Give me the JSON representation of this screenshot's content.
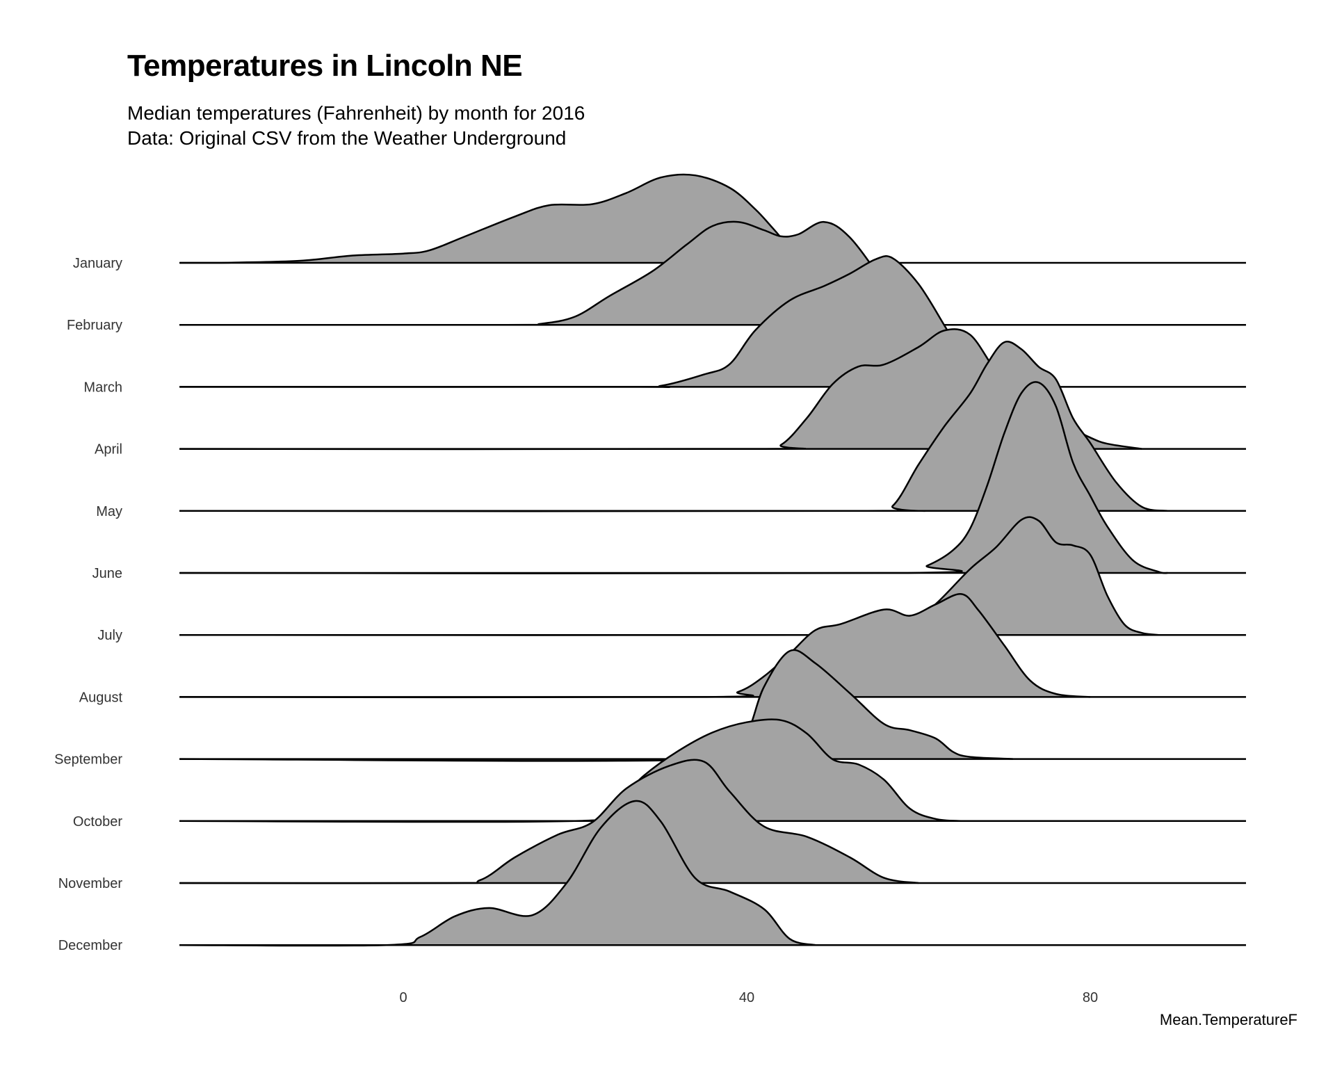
{
  "title": "Temperatures in Lincoln NE",
  "subtitle_line1": "Median temperatures (Fahrenheit) by month for 2016",
  "subtitle_line2": "Data: Original CSV from the Weather Underground",
  "chart_data": {
    "type": "ridgeline",
    "xlabel": "Mean.TemperatureF",
    "ylabel": "",
    "xlim": [
      -26,
      98
    ],
    "x_ticks": [
      0,
      40,
      80
    ],
    "fill_color": "#a3a3a3",
    "line_color": "#000000",
    "grid": false,
    "series": [
      {
        "name": "January",
        "points": [
          [
            -26,
            0
          ],
          [
            -20,
            0.002
          ],
          [
            -12,
            0.02
          ],
          [
            -6,
            0.07
          ],
          [
            0,
            0.09
          ],
          [
            3,
            0.12
          ],
          [
            7,
            0.25
          ],
          [
            13,
            0.45
          ],
          [
            17,
            0.56
          ],
          [
            22,
            0.57
          ],
          [
            26,
            0.68
          ],
          [
            30,
            0.83
          ],
          [
            34,
            0.85
          ],
          [
            38,
            0.73
          ],
          [
            41,
            0.52
          ],
          [
            43,
            0.34
          ],
          [
            45,
            0.15
          ],
          [
            46,
            0.1
          ],
          [
            47,
            0.11
          ],
          [
            50,
            0.2
          ],
          [
            52,
            0.17
          ],
          [
            54,
            0.02
          ],
          [
            55,
            0
          ]
        ]
      },
      {
        "name": "February",
        "points": [
          [
            -26,
            0
          ],
          [
            12,
            0
          ],
          [
            16,
            0.01
          ],
          [
            20,
            0.08
          ],
          [
            24,
            0.28
          ],
          [
            29,
            0.52
          ],
          [
            33,
            0.78
          ],
          [
            36,
            0.96
          ],
          [
            39,
            1.0
          ],
          [
            42,
            0.92
          ],
          [
            44,
            0.86
          ],
          [
            46,
            0.88
          ],
          [
            49,
            1.0
          ],
          [
            52,
            0.85
          ],
          [
            56,
            0.4
          ],
          [
            58,
            0.12
          ],
          [
            60,
            0
          ]
        ]
      },
      {
        "name": "March",
        "points": [
          [
            -26,
            0
          ],
          [
            26,
            0
          ],
          [
            30,
            0.01
          ],
          [
            35,
            0.12
          ],
          [
            38,
            0.22
          ],
          [
            41,
            0.55
          ],
          [
            45,
            0.84
          ],
          [
            49,
            0.98
          ],
          [
            52,
            1.1
          ],
          [
            55,
            1.24
          ],
          [
            57,
            1.25
          ],
          [
            60,
            1.0
          ],
          [
            63,
            0.6
          ],
          [
            65,
            0.32
          ],
          [
            67,
            0.1
          ],
          [
            68,
            0
          ]
        ]
      },
      {
        "name": "April",
        "points": [
          [
            -26,
            0
          ],
          [
            41,
            0
          ],
          [
            44,
            0.04
          ],
          [
            47,
            0.3
          ],
          [
            50,
            0.63
          ],
          [
            53,
            0.8
          ],
          [
            56,
            0.82
          ],
          [
            60,
            0.99
          ],
          [
            63,
            1.15
          ],
          [
            66,
            1.11
          ],
          [
            69,
            0.76
          ],
          [
            72,
            0.5
          ],
          [
            75,
            0.37
          ],
          [
            78,
            0.2
          ],
          [
            80,
            0.11
          ],
          [
            82,
            0.05
          ],
          [
            86,
            0
          ]
        ]
      },
      {
        "name": "May",
        "points": [
          [
            -26,
            0
          ],
          [
            54,
            0
          ],
          [
            57,
            0.05
          ],
          [
            60,
            0.45
          ],
          [
            63,
            0.82
          ],
          [
            66,
            1.14
          ],
          [
            68,
            1.43
          ],
          [
            70,
            1.64
          ],
          [
            72,
            1.57
          ],
          [
            74,
            1.4
          ],
          [
            76,
            1.28
          ],
          [
            78,
            0.9
          ],
          [
            80,
            0.66
          ],
          [
            83,
            0.28
          ],
          [
            86,
            0.04
          ],
          [
            89,
            0
          ]
        ]
      },
      {
        "name": "June",
        "points": [
          [
            -26,
            0
          ],
          [
            58,
            0
          ],
          [
            61,
            0.07
          ],
          [
            64,
            0.22
          ],
          [
            66,
            0.43
          ],
          [
            68,
            0.85
          ],
          [
            70,
            1.36
          ],
          [
            72,
            1.75
          ],
          [
            74,
            1.85
          ],
          [
            76,
            1.62
          ],
          [
            78,
            1.07
          ],
          [
            80,
            0.75
          ],
          [
            82,
            0.45
          ],
          [
            85,
            0.12
          ],
          [
            88,
            0.01
          ],
          [
            89,
            0
          ]
        ]
      },
      {
        "name": "July",
        "points": [
          [
            -26,
            0
          ],
          [
            56,
            0
          ],
          [
            58,
            0.03
          ],
          [
            62,
            0.3
          ],
          [
            66,
            0.64
          ],
          [
            69,
            0.85
          ],
          [
            72,
            1.12
          ],
          [
            74,
            1.11
          ],
          [
            76,
            0.9
          ],
          [
            78,
            0.87
          ],
          [
            80,
            0.78
          ],
          [
            82,
            0.38
          ],
          [
            84,
            0.1
          ],
          [
            86,
            0.02
          ],
          [
            88,
            0
          ]
        ]
      },
      {
        "name": "August",
        "points": [
          [
            -26,
            0
          ],
          [
            35,
            0
          ],
          [
            39,
            0.05
          ],
          [
            42,
            0.2
          ],
          [
            45,
            0.42
          ],
          [
            48,
            0.65
          ],
          [
            51,
            0.71
          ],
          [
            56,
            0.85
          ],
          [
            59,
            0.79
          ],
          [
            62,
            0.9
          ],
          [
            65,
            1.0
          ],
          [
            67,
            0.84
          ],
          [
            70,
            0.5
          ],
          [
            73,
            0.16
          ],
          [
            76,
            0.03
          ],
          [
            80,
            0
          ]
        ]
      },
      {
        "name": "September",
        "points": [
          [
            -26,
            0
          ],
          [
            37,
            0
          ],
          [
            40,
            0.25
          ],
          [
            42,
            0.7
          ],
          [
            45,
            1.05
          ],
          [
            48,
            0.93
          ],
          [
            52,
            0.64
          ],
          [
            56,
            0.34
          ],
          [
            59,
            0.28
          ],
          [
            62,
            0.2
          ],
          [
            64,
            0.07
          ],
          [
            66,
            0.02
          ],
          [
            71,
            0
          ]
        ]
      },
      {
        "name": "October",
        "points": [
          [
            -26,
            0
          ],
          [
            20,
            0
          ],
          [
            24,
            0.12
          ],
          [
            28,
            0.44
          ],
          [
            32,
            0.68
          ],
          [
            36,
            0.86
          ],
          [
            40,
            0.96
          ],
          [
            44,
            0.98
          ],
          [
            47,
            0.85
          ],
          [
            50,
            0.6
          ],
          [
            53,
            0.55
          ],
          [
            56,
            0.4
          ],
          [
            59,
            0.12
          ],
          [
            62,
            0.02
          ],
          [
            65,
            0
          ]
        ]
      },
      {
        "name": "November",
        "points": [
          [
            -26,
            0
          ],
          [
            5,
            0
          ],
          [
            9,
            0.03
          ],
          [
            13,
            0.25
          ],
          [
            18,
            0.47
          ],
          [
            22,
            0.59
          ],
          [
            26,
            0.92
          ],
          [
            31,
            1.14
          ],
          [
            35,
            1.18
          ],
          [
            38,
            0.89
          ],
          [
            42,
            0.55
          ],
          [
            47,
            0.45
          ],
          [
            52,
            0.25
          ],
          [
            56,
            0.05
          ],
          [
            60,
            0
          ]
        ]
      },
      {
        "name": "December",
        "points": [
          [
            -26,
            0
          ],
          [
            -2,
            0
          ],
          [
            2,
            0.08
          ],
          [
            6,
            0.28
          ],
          [
            10,
            0.36
          ],
          [
            15,
            0.29
          ],
          [
            19,
            0.6
          ],
          [
            23,
            1.14
          ],
          [
            27,
            1.4
          ],
          [
            30,
            1.2
          ],
          [
            34,
            0.65
          ],
          [
            38,
            0.52
          ],
          [
            42,
            0.35
          ],
          [
            45,
            0.06
          ],
          [
            48,
            0
          ]
        ]
      }
    ]
  }
}
